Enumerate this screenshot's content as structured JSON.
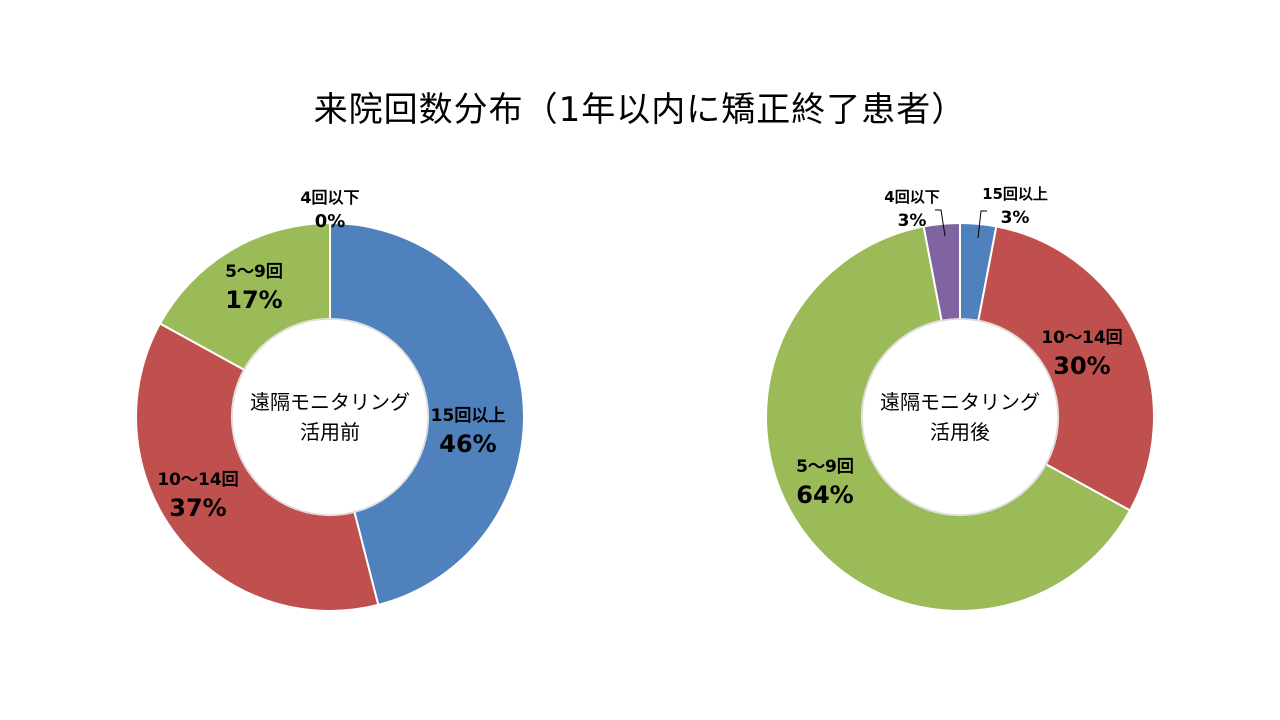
{
  "title": "来院回数分布（1年以内に矯正終了患者）",
  "chart_data": [
    {
      "type": "pie",
      "donut": true,
      "center_label": [
        "遠隔モニタリング",
        "活用前"
      ],
      "start_angle": 0,
      "slices": [
        {
          "name": "15回以上",
          "value": 46,
          "pct_label": "46%",
          "color": "#4F81BD"
        },
        {
          "name": "10～14回",
          "value": 37,
          "pct_label": "37%",
          "color": "#C0504D"
        },
        {
          "name": "5～9回",
          "value": 17,
          "pct_label": "17%",
          "color": "#9BBB59"
        },
        {
          "name": "4回以下",
          "value": 0,
          "pct_label": "0%",
          "color": "#8064A2"
        }
      ]
    },
    {
      "type": "pie",
      "donut": true,
      "center_label": [
        "遠隔モニタリング",
        "活用後"
      ],
      "start_angle": 0,
      "slices": [
        {
          "name": "15回以上",
          "value": 3,
          "pct_label": "3%",
          "color": "#4F81BD"
        },
        {
          "name": "10～14回",
          "value": 30,
          "pct_label": "30%",
          "color": "#C0504D"
        },
        {
          "name": "5～9回",
          "value": 64,
          "pct_label": "64%",
          "color": "#9BBB59"
        },
        {
          "name": "4回以下",
          "value": 3,
          "pct_label": "3%",
          "color": "#8064A2"
        }
      ]
    }
  ]
}
